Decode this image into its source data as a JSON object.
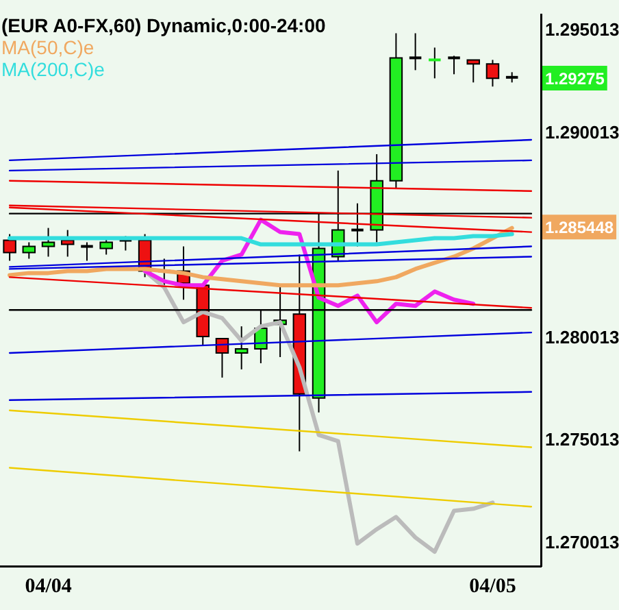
{
  "chart_data": {
    "type": "candlestick",
    "title": "(EUR A0-FX,60) Dynamic,0:00-24:00",
    "categories": [
      null,
      null,
      "04/04",
      null,
      null,
      null,
      null,
      null,
      null,
      null,
      null,
      null,
      null,
      null,
      null,
      null,
      null,
      null,
      null,
      null,
      null,
      null,
      null,
      null,
      null,
      "04/05",
      null,
      null
    ],
    "ohlc": [
      [
        1.2848,
        1.2851,
        1.2838,
        1.2842
      ],
      [
        1.2842,
        1.2847,
        1.2839,
        1.2845
      ],
      [
        1.2845,
        1.2854,
        1.284,
        1.2847
      ],
      [
        1.2848,
        1.2853,
        1.284,
        1.2846
      ],
      [
        1.2845,
        1.2847,
        1.2838,
        1.2845
      ],
      [
        1.2844,
        1.2849,
        1.2841,
        1.2847
      ],
      [
        1.2848,
        1.285,
        1.2843,
        1.2848
      ],
      [
        1.2848,
        1.2851,
        1.283,
        1.2833
      ],
      [
        1.2833,
        1.2839,
        1.2825,
        1.2832
      ],
      [
        1.2833,
        1.2845,
        1.2819,
        1.2827
      ],
      [
        1.2826,
        1.2827,
        1.2797,
        1.2801
      ],
      [
        1.28,
        1.28,
        1.2781,
        1.2793
      ],
      [
        1.2793,
        1.2806,
        1.2785,
        1.2795
      ],
      [
        1.2795,
        1.2814,
        1.2788,
        1.2805
      ],
      [
        1.2807,
        1.2826,
        1.2791,
        1.2809
      ],
      [
        1.2812,
        1.2841,
        1.2745,
        1.2773
      ],
      [
        1.2771,
        1.2861,
        1.2764,
        1.2844
      ],
      [
        1.284,
        1.2882,
        1.2838,
        1.2853
      ],
      [
        1.2853,
        1.2866,
        1.2845,
        1.2853
      ],
      [
        1.2853,
        1.289,
        1.2847,
        1.2877
      ],
      [
        1.2877,
        1.2949,
        1.2873,
        1.2937
      ],
      [
        1.2937,
        1.2949,
        1.2931,
        1.2937
      ],
      [
        1.2935,
        1.2942,
        1.2927,
        1.2936
      ],
      [
        1.2937,
        1.2938,
        1.2929,
        1.2937
      ],
      [
        1.2936,
        1.2936,
        1.2925,
        1.2934
      ],
      [
        1.2934,
        1.2936,
        1.2923,
        1.2927
      ],
      [
        1.29275,
        1.293,
        1.2925,
        1.29275
      ],
      null
    ],
    "colors": [
      "#ee1111",
      "#22ee22",
      "#22ee22",
      "#ee1111",
      "#000000",
      "#22ee22",
      "#000000",
      "#ee1111",
      "#ee1111",
      "#ee1111",
      "#ee1111",
      "#ee1111",
      "#22ee22",
      "#22ee22",
      "#22ee22",
      "#ee1111",
      "#22ee22",
      "#22ee22",
      "#000000",
      "#22ee22",
      "#22ee22",
      "#000000",
      "#22ee22",
      "#000000",
      "#ee1111",
      "#ee1111",
      "#000000",
      null
    ],
    "series": [
      {
        "type": "line",
        "color": "#0000dd",
        "values": [
          1.2887,
          null,
          null,
          null,
          null,
          null,
          null,
          null,
          null,
          null,
          null,
          null,
          null,
          null,
          null,
          null,
          null,
          null,
          null,
          null,
          null,
          null,
          null,
          null,
          null,
          null,
          null,
          1.2897
        ]
      },
      {
        "type": "line",
        "color": "#0000dd",
        "values": [
          1.2882,
          null,
          null,
          null,
          null,
          null,
          null,
          null,
          null,
          null,
          null,
          null,
          null,
          null,
          null,
          null,
          null,
          null,
          null,
          null,
          null,
          null,
          null,
          null,
          null,
          null,
          null,
          1.2887
        ]
      },
      {
        "type": "line",
        "color": "#ee0000",
        "values": [
          1.2877,
          null,
          null,
          null,
          null,
          null,
          null,
          null,
          null,
          null,
          null,
          null,
          null,
          null,
          null,
          null,
          null,
          null,
          null,
          null,
          null,
          null,
          null,
          null,
          null,
          null,
          null,
          1.2872
        ]
      },
      {
        "type": "line",
        "color": "#ee0000",
        "values": [
          1.2865,
          null,
          null,
          null,
          null,
          null,
          null,
          null,
          null,
          null,
          null,
          null,
          null,
          null,
          null,
          null,
          null,
          null,
          null,
          null,
          null,
          null,
          null,
          null,
          null,
          null,
          null,
          1.2859
        ]
      },
      {
        "type": "line",
        "color": "#ee0000",
        "values": [
          1.2864,
          null,
          null,
          null,
          null,
          null,
          null,
          null,
          null,
          null,
          null,
          null,
          null,
          null,
          null,
          null,
          null,
          null,
          null,
          null,
          null,
          null,
          null,
          null,
          null,
          null,
          null,
          1.2852
        ]
      },
      {
        "type": "line",
        "color": "#000000",
        "values": [
          1.2861,
          null,
          null,
          null,
          null,
          null,
          null,
          null,
          null,
          null,
          null,
          null,
          null,
          null,
          null,
          null,
          null,
          null,
          null,
          null,
          null,
          null,
          null,
          null,
          null,
          null,
          null,
          1.2861
        ]
      },
      {
        "type": "line",
        "color": "#0000dd",
        "values": [
          1.2835,
          null,
          null,
          null,
          null,
          null,
          null,
          null,
          null,
          null,
          null,
          null,
          null,
          null,
          null,
          null,
          null,
          null,
          null,
          null,
          null,
          null,
          null,
          null,
          null,
          null,
          null,
          1.2845
        ]
      },
      {
        "type": "line",
        "color": "#0000dd",
        "values": [
          1.2834,
          null,
          null,
          null,
          null,
          null,
          null,
          null,
          null,
          null,
          null,
          null,
          null,
          null,
          null,
          null,
          null,
          null,
          null,
          null,
          null,
          null,
          null,
          null,
          null,
          null,
          null,
          1.284
        ]
      },
      {
        "type": "line",
        "color": "#ee0000",
        "values": [
          1.283,
          null,
          null,
          null,
          null,
          null,
          null,
          null,
          null,
          null,
          null,
          null,
          null,
          null,
          null,
          null,
          null,
          null,
          null,
          null,
          null,
          null,
          null,
          null,
          null,
          null,
          null,
          1.2815
        ]
      },
      {
        "type": "line",
        "color": "#000000",
        "values": [
          1.2814,
          null,
          null,
          null,
          null,
          null,
          null,
          null,
          null,
          null,
          null,
          null,
          null,
          null,
          null,
          null,
          null,
          null,
          null,
          null,
          null,
          null,
          null,
          null,
          null,
          null,
          null,
          1.2814
        ]
      },
      {
        "type": "line",
        "color": "#0000dd",
        "values": [
          1.2793,
          null,
          null,
          null,
          null,
          null,
          null,
          null,
          null,
          null,
          null,
          null,
          null,
          null,
          null,
          null,
          null,
          null,
          null,
          null,
          null,
          null,
          null,
          null,
          null,
          null,
          null,
          1.2803
        ]
      },
      {
        "type": "line",
        "color": "#0000dd",
        "values": [
          1.277,
          null,
          null,
          null,
          null,
          null,
          null,
          null,
          null,
          null,
          null,
          null,
          null,
          null,
          null,
          null,
          null,
          null,
          null,
          null,
          null,
          null,
          null,
          null,
          null,
          null,
          null,
          1.2774
        ]
      },
      {
        "type": "line",
        "color": "#eecc00",
        "values": [
          1.2765,
          null,
          null,
          null,
          null,
          null,
          null,
          null,
          null,
          null,
          null,
          null,
          null,
          null,
          null,
          null,
          null,
          null,
          null,
          null,
          null,
          null,
          null,
          null,
          null,
          null,
          null,
          1.2747
        ]
      },
      {
        "type": "line",
        "color": "#eecc00",
        "values": [
          1.2737,
          null,
          null,
          null,
          null,
          null,
          null,
          null,
          null,
          null,
          null,
          null,
          null,
          null,
          null,
          null,
          null,
          null,
          null,
          null,
          null,
          null,
          null,
          null,
          null,
          null,
          null,
          1.2718
        ]
      },
      {
        "type": "line",
        "name": "MA(200,C)e",
        "color": "#33dddd",
        "values": [
          1.2849,
          1.2849,
          1.2849,
          1.2849,
          1.2849,
          1.2849,
          1.2849,
          1.2849,
          1.2849,
          1.2849,
          1.2849,
          1.2849,
          1.2849,
          1.2846,
          1.2846,
          1.2846,
          1.2846,
          1.2846,
          1.2846,
          1.2846,
          1.2847,
          1.2848,
          1.2849,
          1.2849,
          1.285,
          1.285,
          1.2851,
          null
        ]
      },
      {
        "type": "line",
        "name": "MA(50,C)e",
        "color": "#f0a860",
        "values": [
          1.2831,
          1.2832,
          1.2832,
          1.2833,
          1.2833,
          1.2834,
          1.2834,
          1.2834,
          1.2833,
          1.2832,
          1.283,
          1.2829,
          1.2828,
          1.2827,
          1.2826,
          1.2826,
          1.2826,
          1.2826,
          1.2827,
          1.2828,
          1.283,
          1.2834,
          1.2837,
          1.284,
          1.2844,
          1.2849,
          1.2854,
          null
        ]
      },
      {
        "type": "line",
        "color": "#ee22ee",
        "values": [
          null,
          null,
          null,
          null,
          null,
          null,
          null,
          1.2833,
          1.2828,
          1.2826,
          1.2826,
          1.2838,
          1.2841,
          1.2858,
          1.2852,
          1.2851,
          1.282,
          1.2816,
          1.2821,
          1.2808,
          1.2817,
          1.2816,
          1.2823,
          1.2819,
          1.2817,
          null,
          null,
          null
        ]
      },
      {
        "type": "line",
        "color": "#bbbbbb",
        "values": [
          null,
          null,
          null,
          null,
          null,
          null,
          null,
          1.2833,
          1.2825,
          1.2808,
          1.2813,
          1.281,
          1.2799,
          1.2806,
          1.2808,
          1.2786,
          1.2753,
          1.275,
          1.27,
          1.2707,
          1.2713,
          1.2703,
          1.2696,
          1.2716,
          1.2717,
          1.272,
          null,
          null
        ]
      }
    ],
    "ylim": [
      1.2689,
      1.2958
    ],
    "yticks": [
      1.295013,
      1.290013,
      1.280013,
      1.275013,
      1.270013
    ],
    "annotations": [
      "1.29275",
      "1.285448"
    ],
    "legend": "top left"
  }
}
